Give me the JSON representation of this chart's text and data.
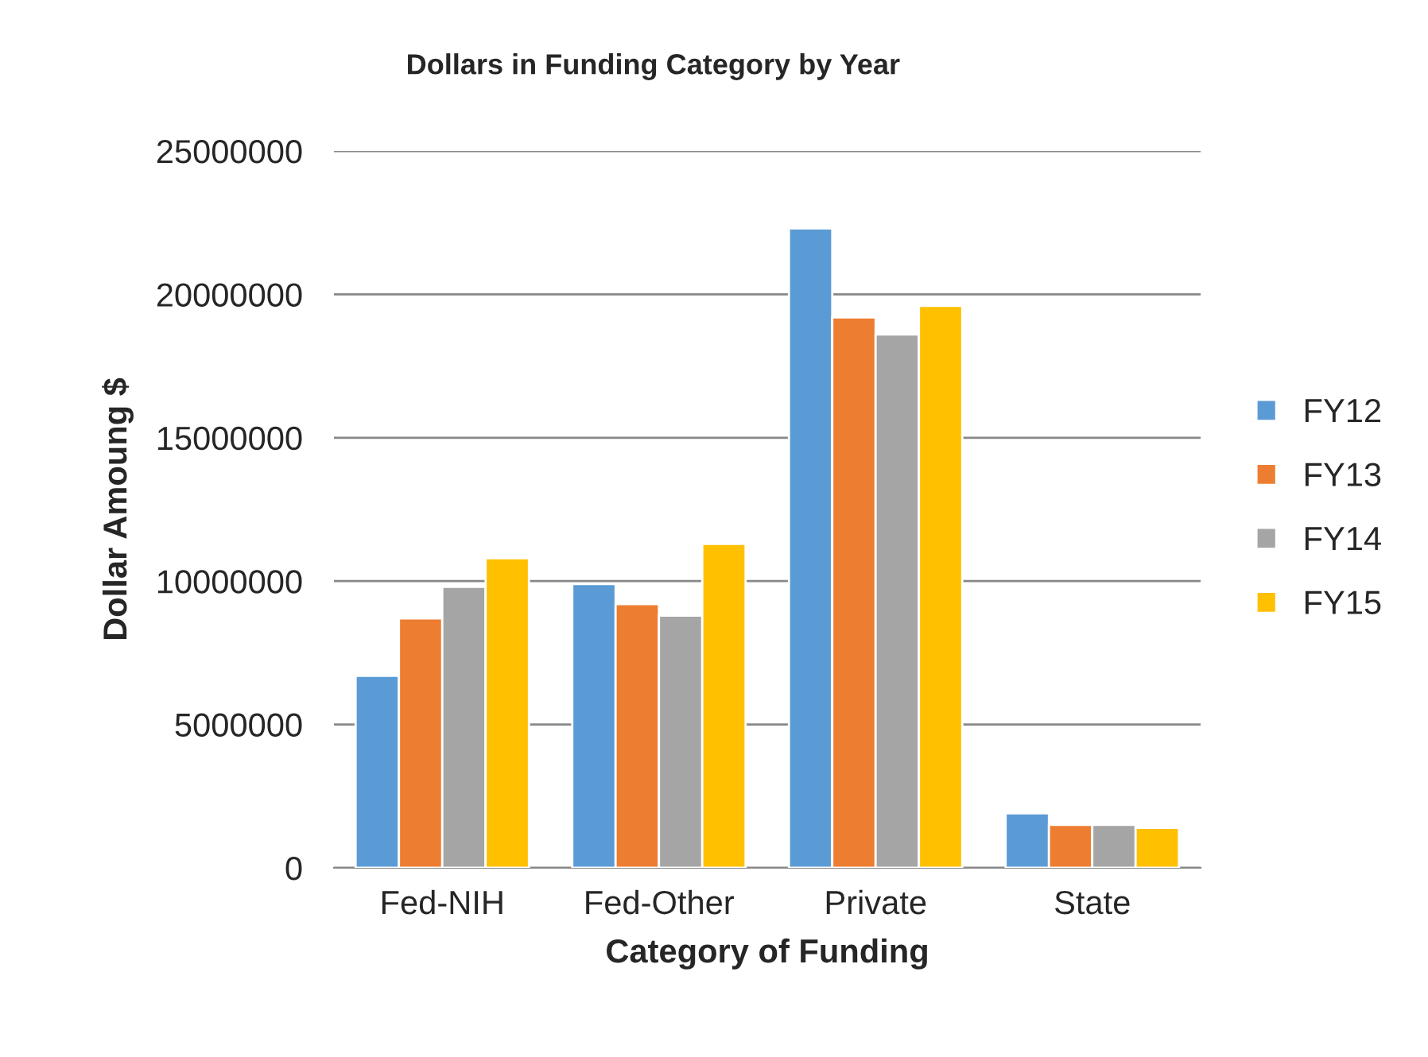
{
  "chart_data": {
    "type": "bar",
    "title": "Dollars in Funding Category by Year",
    "xlabel": "Category of Funding",
    "ylabel": "Dollar Amoung $",
    "categories": [
      "Fed-NIH",
      "Fed-Other",
      "Private",
      "State"
    ],
    "series": [
      {
        "name": "FY12",
        "color": "#5b9bd5",
        "values": [
          6700000,
          9900000,
          22300000,
          1900000
        ]
      },
      {
        "name": "FY13",
        "color": "#ed7d31",
        "values": [
          8700000,
          9200000,
          19200000,
          1500000
        ]
      },
      {
        "name": "FY14",
        "color": "#a5a5a5",
        "values": [
          9800000,
          8800000,
          18600000,
          1500000
        ]
      },
      {
        "name": "FY15",
        "color": "#ffc000",
        "values": [
          10800000,
          11300000,
          19600000,
          1400000
        ]
      }
    ],
    "ylim": [
      0,
      25000000
    ],
    "yticks": [
      0,
      5000000,
      10000000,
      15000000,
      20000000,
      25000000
    ],
    "grid": "y",
    "legend": "right"
  }
}
